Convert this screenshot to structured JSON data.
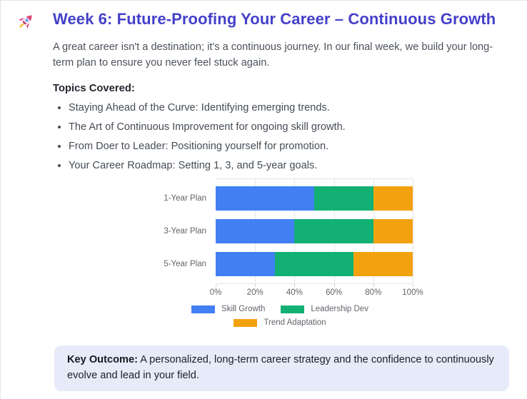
{
  "colors": {
    "title": "#4540c9",
    "key_outcome_bg": "#e7ebf9",
    "grid_line": "#e6e6e6",
    "axis_text": "#636363"
  },
  "header": {
    "icon": "rocket",
    "title": "Week 6: Future-Proofing Your Career – Continuous Growth"
  },
  "intro": "A great career isn't a destination; it's a continuous journey. In our final week, we build your long-term plan to ensure you never feel stuck again.",
  "topics": {
    "heading": "Topics Covered:",
    "items": [
      "Staying Ahead of the Curve: Identifying emerging trends.",
      "The Art of Continuous Improvement for ongoing skill growth.",
      "From Doer to Leader: Positioning yourself for promotion.",
      "Your Career Roadmap: Setting 1, 3, and 5-year goals."
    ]
  },
  "chart_data": {
    "type": "bar",
    "orientation": "horizontal",
    "stacked": true,
    "categories": [
      "1-Year Plan",
      "3-Year Plan",
      "5-Year Plan"
    ],
    "series": [
      {
        "name": "Skill Growth",
        "color": "#417ff2",
        "values": [
          50,
          40,
          30
        ]
      },
      {
        "name": "Leadership Dev",
        "color": "#12b173",
        "values": [
          30,
          40,
          40
        ]
      },
      {
        "name": "Trend Adaptation",
        "color": "#f2a20f",
        "values": [
          20,
          20,
          30
        ]
      }
    ],
    "xlim": [
      0,
      100
    ],
    "x_ticks": [
      "0%",
      "20%",
      "40%",
      "60%",
      "80%",
      "100%"
    ],
    "grid": true,
    "legend_position": "bottom"
  },
  "key_outcome": {
    "label": "Key Outcome:",
    "text": "A personalized, long-term career strategy and the confidence to continuously evolve and lead in your field."
  }
}
